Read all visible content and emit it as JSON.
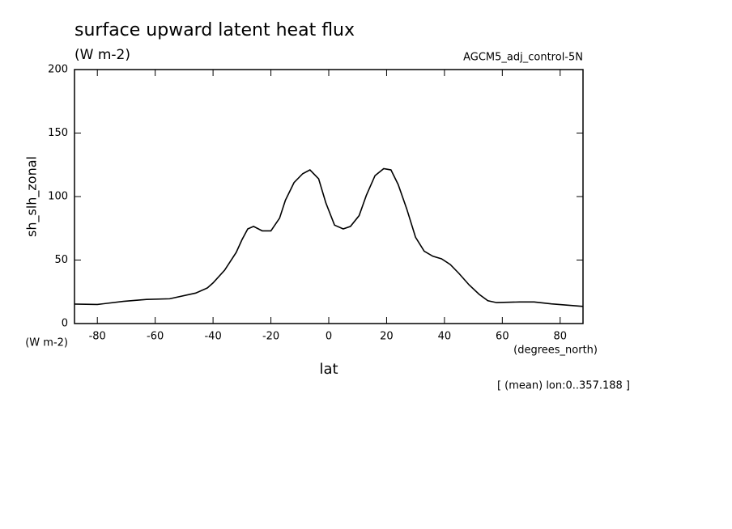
{
  "chart_data": {
    "type": "line",
    "title": "surface upward latent heat flux",
    "subtitle": "(W m-2)",
    "dataset_label": "AGCM5_adj_control-5N",
    "y_label": "sh_slh_zonal",
    "y_unit": "(W m-2)",
    "x_label": "lat",
    "x_unit": "(degrees_north)",
    "note": "[ (mean) lon:0..357.188 ]",
    "x": [
      -87.9,
      -80,
      -71,
      -63,
      -55,
      -46,
      -42,
      -40,
      -36,
      -32,
      -30,
      -28,
      -26,
      -23,
      -20,
      -17,
      -15,
      -12,
      -9,
      -6.5,
      -3.5,
      -1,
      2,
      5,
      7.5,
      10.5,
      13,
      16,
      19,
      21.5,
      24,
      27,
      30,
      33,
      36,
      39,
      42,
      45,
      48.5,
      52,
      55,
      58,
      66,
      71,
      77,
      87.9
    ],
    "series": [
      {
        "name": "sh_slh_zonal",
        "color": "#000000",
        "values": [
          15.3,
          15,
          17.5,
          19,
          19.5,
          24,
          28,
          32,
          42,
          56,
          66,
          74.5,
          76.5,
          73,
          73,
          83,
          97,
          111,
          118,
          121,
          114,
          95,
          77.5,
          74.5,
          76.5,
          85,
          101,
          116.5,
          122,
          121,
          109.5,
          90,
          68,
          57,
          53,
          51,
          46.5,
          39.5,
          30.5,
          23,
          18,
          16.5,
          17,
          17,
          15.5,
          13.5
        ]
      }
    ],
    "xlim": [
      -87.9,
      87.9
    ],
    "ylim": [
      0,
      200
    ],
    "xticks": [
      -80,
      -60,
      -40,
      -20,
      0,
      20,
      40,
      60,
      80
    ],
    "yticks": [
      0,
      50,
      100,
      150,
      200
    ],
    "grid": false
  }
}
